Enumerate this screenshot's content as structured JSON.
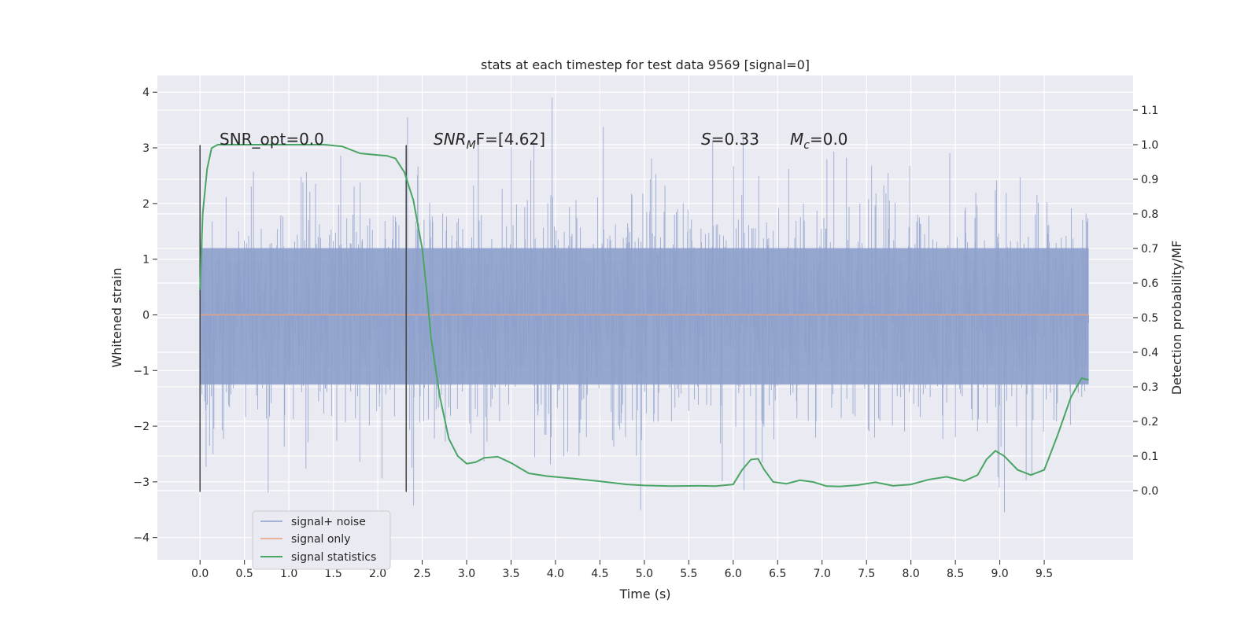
{
  "chart_data": {
    "type": "line",
    "title": "stats at each timestep for test data 9569 [signal=0]",
    "xlabel": "Time (s)",
    "ylabel": "Whitened strain",
    "ylabel_right": "Detection probability/MF",
    "xlim": [
      -0.48,
      10.5
    ],
    "ylim": [
      -4.4,
      4.3
    ],
    "ylim_right": [
      -0.2,
      1.2
    ],
    "x_ticks": [
      0.0,
      0.5,
      1.0,
      1.5,
      2.0,
      2.5,
      3.0,
      3.5,
      4.0,
      4.5,
      5.0,
      5.5,
      6.0,
      6.5,
      7.0,
      7.5,
      8.0,
      8.5,
      9.0,
      9.5
    ],
    "x_tick_labels": [
      "0.0",
      "0.5",
      "1.0",
      "1.5",
      "2.0",
      "2.5",
      "3.0",
      "3.5",
      "4.0",
      "4.5",
      "5.0",
      "5.5",
      "6.0",
      "6.5",
      "7.0",
      "7.5",
      "8.0",
      "8.5",
      "9.0",
      "9.5"
    ],
    "y_ticks": [
      -4,
      -3,
      -2,
      -1,
      0,
      1,
      2,
      3,
      4
    ],
    "y_tick_labels": [
      "−4",
      "−3",
      "−2",
      "−1",
      "0",
      "1",
      "2",
      "3",
      "4"
    ],
    "y_right_ticks": [
      0.0,
      0.1,
      0.2,
      0.3,
      0.4,
      0.5,
      0.6,
      0.7,
      0.8,
      0.9,
      1.0,
      1.1
    ],
    "y_right_tick_labels": [
      "0.0",
      "0.1",
      "0.2",
      "0.3",
      "0.4",
      "0.5",
      "0.6",
      "0.7",
      "0.8",
      "0.9",
      "1.0",
      "1.1"
    ],
    "grid": true,
    "legend_position": "lower-left",
    "annotations": {
      "snr_opt": "SNR_opt=0.0",
      "snr_mf_base": "SNR",
      "snr_mf_sub": "M",
      "snr_mf_rest": "F=[4.62]",
      "s_var": "S",
      "s_val": "=0.33",
      "mc_base": "M",
      "mc_sub": "c",
      "mc_val": "=0.0"
    },
    "vertical_markers": [
      0.0,
      2.32
    ],
    "series": [
      {
        "name": "signal+ noise",
        "color": "#8da0cb",
        "axis": "left",
        "style": "noise",
        "x_range": [
          0.0,
          10.0
        ],
        "amplitude_range": [
          -4.0,
          3.9
        ]
      },
      {
        "name": "signal only",
        "color": "#e8a07e",
        "axis": "left",
        "x": [
          0.0,
          10.0
        ],
        "y": [
          0.0,
          0.0
        ]
      },
      {
        "name": "signal statistics",
        "color": "#4aa564",
        "axis": "right",
        "x": [
          0.0,
          0.03,
          0.08,
          0.13,
          0.2,
          0.35,
          0.6,
          1.0,
          1.4,
          1.6,
          1.8,
          2.0,
          2.1,
          2.2,
          2.3,
          2.4,
          2.5,
          2.55,
          2.6,
          2.7,
          2.8,
          2.9,
          3.0,
          3.1,
          3.2,
          3.35,
          3.5,
          3.7,
          3.9,
          4.2,
          4.5,
          4.8,
          5.0,
          5.3,
          5.6,
          5.8,
          6.0,
          6.1,
          6.2,
          6.28,
          6.35,
          6.45,
          6.6,
          6.75,
          6.9,
          7.05,
          7.2,
          7.4,
          7.6,
          7.8,
          8.0,
          8.2,
          8.4,
          8.6,
          8.75,
          8.85,
          8.95,
          9.05,
          9.2,
          9.35,
          9.5,
          9.65,
          9.8,
          9.92,
          10.0
        ],
        "y": [
          0.58,
          0.8,
          0.93,
          0.99,
          1.0,
          1.0,
          1.0,
          1.0,
          1.0,
          0.995,
          0.975,
          0.97,
          0.968,
          0.96,
          0.92,
          0.84,
          0.7,
          0.58,
          0.44,
          0.27,
          0.15,
          0.1,
          0.078,
          0.082,
          0.095,
          0.098,
          0.08,
          0.05,
          0.042,
          0.035,
          0.027,
          0.018,
          0.015,
          0.013,
          0.014,
          0.013,
          0.018,
          0.06,
          0.09,
          0.092,
          0.06,
          0.025,
          0.02,
          0.03,
          0.025,
          0.013,
          0.012,
          0.016,
          0.024,
          0.014,
          0.018,
          0.032,
          0.04,
          0.028,
          0.045,
          0.09,
          0.115,
          0.1,
          0.06,
          0.045,
          0.06,
          0.16,
          0.27,
          0.325,
          0.32
        ]
      }
    ]
  }
}
